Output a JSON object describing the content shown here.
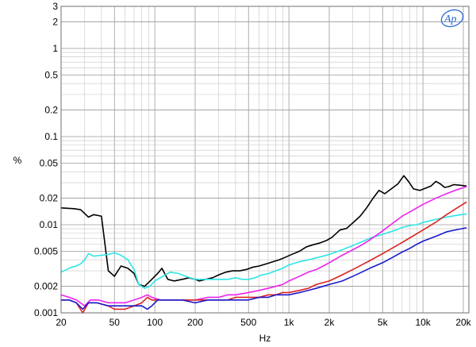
{
  "chart_data": {
    "type": "line",
    "title": "",
    "xlabel": "Hz",
    "ylabel": "%",
    "x_scale": "log",
    "y_scale": "log",
    "xlim": [
      20,
      22000
    ],
    "ylim": [
      0.001,
      3
    ],
    "grid": true,
    "logo": "Ap",
    "x_ticks": [
      {
        "value": 20,
        "label": "20"
      },
      {
        "value": 50,
        "label": "50"
      },
      {
        "value": 100,
        "label": "100"
      },
      {
        "value": 200,
        "label": "200"
      },
      {
        "value": 500,
        "label": "500"
      },
      {
        "value": 1000,
        "label": "1k"
      },
      {
        "value": 2000,
        "label": "2k"
      },
      {
        "value": 5000,
        "label": "5k"
      },
      {
        "value": 10000,
        "label": "10k"
      },
      {
        "value": 20000,
        "label": "20k"
      }
    ],
    "y_ticks": [
      {
        "value": 3,
        "label": "3"
      },
      {
        "value": 2,
        "label": "2"
      },
      {
        "value": 1,
        "label": "1"
      },
      {
        "value": 0.5,
        "label": "0.5"
      },
      {
        "value": 0.2,
        "label": "0.2"
      },
      {
        "value": 0.1,
        "label": "0.1"
      },
      {
        "value": 0.05,
        "label": "0.05"
      },
      {
        "value": 0.02,
        "label": "0.02"
      },
      {
        "value": 0.01,
        "label": "0.01"
      },
      {
        "value": 0.005,
        "label": "0.005"
      },
      {
        "value": 0.002,
        "label": "0.002"
      },
      {
        "value": 0.001,
        "label": "0.001"
      }
    ],
    "series": [
      {
        "color": "#000000",
        "points": [
          [
            20,
            0.0155
          ],
          [
            25,
            0.0152
          ],
          [
            28,
            0.0148
          ],
          [
            32,
            0.0122
          ],
          [
            35,
            0.013
          ],
          [
            40,
            0.0125
          ],
          [
            45,
            0.003
          ],
          [
            50,
            0.0026
          ],
          [
            56,
            0.0034
          ],
          [
            63,
            0.0032
          ],
          [
            70,
            0.0028
          ],
          [
            76,
            0.0021
          ],
          [
            84,
            0.002
          ],
          [
            95,
            0.0024
          ],
          [
            105,
            0.0028
          ],
          [
            113,
            0.0032
          ],
          [
            125,
            0.0024
          ],
          [
            140,
            0.0023
          ],
          [
            160,
            0.0024
          ],
          [
            180,
            0.0025
          ],
          [
            200,
            0.0024
          ],
          [
            215,
            0.0023
          ],
          [
            240,
            0.0024
          ],
          [
            270,
            0.0025
          ],
          [
            300,
            0.0027
          ],
          [
            340,
            0.0029
          ],
          [
            380,
            0.003
          ],
          [
            430,
            0.003
          ],
          [
            480,
            0.0031
          ],
          [
            540,
            0.0033
          ],
          [
            600,
            0.0034
          ],
          [
            680,
            0.0036
          ],
          [
            760,
            0.0038
          ],
          [
            850,
            0.004
          ],
          [
            950,
            0.0043
          ],
          [
            1050,
            0.0046
          ],
          [
            1200,
            0.005
          ],
          [
            1350,
            0.0056
          ],
          [
            1500,
            0.0059
          ],
          [
            1700,
            0.0062
          ],
          [
            1900,
            0.0066
          ],
          [
            2100,
            0.0072
          ],
          [
            2400,
            0.0087
          ],
          [
            2700,
            0.0091
          ],
          [
            3000,
            0.0105
          ],
          [
            3400,
            0.0125
          ],
          [
            3800,
            0.0155
          ],
          [
            4200,
            0.0195
          ],
          [
            4700,
            0.0245
          ],
          [
            5200,
            0.0225
          ],
          [
            5800,
            0.0255
          ],
          [
            6500,
            0.029
          ],
          [
            7200,
            0.036
          ],
          [
            7800,
            0.031
          ],
          [
            8500,
            0.0255
          ],
          [
            9500,
            0.0245
          ],
          [
            10500,
            0.026
          ],
          [
            11500,
            0.0275
          ],
          [
            12500,
            0.031
          ],
          [
            13500,
            0.029
          ],
          [
            14500,
            0.0265
          ],
          [
            15500,
            0.027
          ],
          [
            17000,
            0.0285
          ],
          [
            19000,
            0.028
          ],
          [
            21000,
            0.0275
          ]
        ]
      },
      {
        "color": "#2ee6e6",
        "points": [
          [
            20,
            0.0029
          ],
          [
            22,
            0.0031
          ],
          [
            24,
            0.0033
          ],
          [
            26,
            0.0034
          ],
          [
            28,
            0.0036
          ],
          [
            30,
            0.004
          ],
          [
            32,
            0.0047
          ],
          [
            35,
            0.0044
          ],
          [
            40,
            0.0045
          ],
          [
            45,
            0.0046
          ],
          [
            50,
            0.0048
          ],
          [
            56,
            0.0045
          ],
          [
            63,
            0.004
          ],
          [
            70,
            0.0031
          ],
          [
            76,
            0.0021
          ],
          [
            84,
            0.0019
          ],
          [
            92,
            0.002
          ],
          [
            100,
            0.0023
          ],
          [
            115,
            0.0026
          ],
          [
            130,
            0.0029
          ],
          [
            150,
            0.0028
          ],
          [
            170,
            0.0026
          ],
          [
            200,
            0.0024
          ],
          [
            250,
            0.0024
          ],
          [
            300,
            0.0024
          ],
          [
            350,
            0.0024
          ],
          [
            400,
            0.0025
          ],
          [
            450,
            0.0024
          ],
          [
            500,
            0.0024
          ],
          [
            560,
            0.0025
          ],
          [
            630,
            0.0027
          ],
          [
            710,
            0.0028
          ],
          [
            800,
            0.003
          ],
          [
            900,
            0.0032
          ],
          [
            1000,
            0.0035
          ],
          [
            1200,
            0.0038
          ],
          [
            1400,
            0.004
          ],
          [
            1600,
            0.0042
          ],
          [
            1800,
            0.0044
          ],
          [
            2000,
            0.0046
          ],
          [
            2500,
            0.0052
          ],
          [
            3000,
            0.0058
          ],
          [
            3500,
            0.0064
          ],
          [
            4000,
            0.007
          ],
          [
            5000,
            0.0078
          ],
          [
            6000,
            0.0085
          ],
          [
            7000,
            0.0093
          ],
          [
            8000,
            0.0098
          ],
          [
            9000,
            0.01
          ],
          [
            10000,
            0.0106
          ],
          [
            12500,
            0.0115
          ],
          [
            15000,
            0.0122
          ],
          [
            18000,
            0.0128
          ],
          [
            21000,
            0.0132
          ]
        ]
      },
      {
        "color": "#ee22ee",
        "points": [
          [
            20,
            0.0016
          ],
          [
            23,
            0.0015
          ],
          [
            26,
            0.0014
          ],
          [
            30,
            0.0012
          ],
          [
            33,
            0.0014
          ],
          [
            38,
            0.0014
          ],
          [
            45,
            0.0013
          ],
          [
            50,
            0.0013
          ],
          [
            60,
            0.0013
          ],
          [
            70,
            0.0014
          ],
          [
            80,
            0.0015
          ],
          [
            88,
            0.0016
          ],
          [
            95,
            0.0015
          ],
          [
            110,
            0.0014
          ],
          [
            130,
            0.0014
          ],
          [
            160,
            0.0014
          ],
          [
            200,
            0.0014
          ],
          [
            250,
            0.0015
          ],
          [
            300,
            0.0015
          ],
          [
            350,
            0.0016
          ],
          [
            400,
            0.0016
          ],
          [
            500,
            0.0017
          ],
          [
            600,
            0.0018
          ],
          [
            700,
            0.0019
          ],
          [
            800,
            0.002
          ],
          [
            900,
            0.0021
          ],
          [
            1000,
            0.0023
          ],
          [
            1200,
            0.0026
          ],
          [
            1400,
            0.0029
          ],
          [
            1600,
            0.0031
          ],
          [
            1800,
            0.0034
          ],
          [
            2000,
            0.0037
          ],
          [
            2500,
            0.0045
          ],
          [
            3000,
            0.0052
          ],
          [
            3500,
            0.0059
          ],
          [
            4000,
            0.0067
          ],
          [
            5000,
            0.0085
          ],
          [
            6000,
            0.0105
          ],
          [
            7000,
            0.0125
          ],
          [
            8000,
            0.014
          ],
          [
            9000,
            0.0155
          ],
          [
            10000,
            0.017
          ],
          [
            12500,
            0.02
          ],
          [
            15000,
            0.0225
          ],
          [
            18000,
            0.025
          ],
          [
            21000,
            0.027
          ]
        ]
      },
      {
        "color": "#dd2222",
        "points": [
          [
            20,
            0.0014
          ],
          [
            23,
            0.0014
          ],
          [
            26,
            0.0013
          ],
          [
            29,
            0.001
          ],
          [
            32,
            0.0013
          ],
          [
            37,
            0.0013
          ],
          [
            45,
            0.0012
          ],
          [
            50,
            0.0011
          ],
          [
            60,
            0.0011
          ],
          [
            70,
            0.0012
          ],
          [
            80,
            0.0013
          ],
          [
            88,
            0.0015
          ],
          [
            95,
            0.0014
          ],
          [
            110,
            0.0014
          ],
          [
            130,
            0.0014
          ],
          [
            160,
            0.0014
          ],
          [
            200,
            0.0014
          ],
          [
            250,
            0.0014
          ],
          [
            300,
            0.0014
          ],
          [
            350,
            0.0014
          ],
          [
            400,
            0.0015
          ],
          [
            500,
            0.0015
          ],
          [
            600,
            0.0015
          ],
          [
            700,
            0.0016
          ],
          [
            800,
            0.0016
          ],
          [
            900,
            0.0017
          ],
          [
            1000,
            0.0017
          ],
          [
            1200,
            0.0018
          ],
          [
            1400,
            0.0019
          ],
          [
            1600,
            0.0021
          ],
          [
            1800,
            0.0022
          ],
          [
            2000,
            0.0023
          ],
          [
            2500,
            0.0027
          ],
          [
            3000,
            0.0031
          ],
          [
            3500,
            0.0035
          ],
          [
            4000,
            0.0039
          ],
          [
            5000,
            0.0047
          ],
          [
            6000,
            0.0055
          ],
          [
            7000,
            0.0063
          ],
          [
            8000,
            0.0071
          ],
          [
            9000,
            0.0079
          ],
          [
            10000,
            0.0087
          ],
          [
            12500,
            0.0107
          ],
          [
            15000,
            0.013
          ],
          [
            18000,
            0.0155
          ],
          [
            21000,
            0.018
          ]
        ]
      },
      {
        "color": "#1a1acc",
        "points": [
          [
            20,
            0.0014
          ],
          [
            23,
            0.0014
          ],
          [
            26,
            0.0013
          ],
          [
            29,
            0.0011
          ],
          [
            32,
            0.0013
          ],
          [
            37,
            0.0013
          ],
          [
            45,
            0.0012
          ],
          [
            50,
            0.0012
          ],
          [
            60,
            0.0012
          ],
          [
            70,
            0.0012
          ],
          [
            80,
            0.0012
          ],
          [
            88,
            0.0011
          ],
          [
            95,
            0.0012
          ],
          [
            105,
            0.0014
          ],
          [
            130,
            0.0014
          ],
          [
            160,
            0.0014
          ],
          [
            200,
            0.0013
          ],
          [
            250,
            0.0014
          ],
          [
            300,
            0.0014
          ],
          [
            350,
            0.0014
          ],
          [
            400,
            0.0014
          ],
          [
            500,
            0.0014
          ],
          [
            600,
            0.0015
          ],
          [
            700,
            0.0015
          ],
          [
            800,
            0.0016
          ],
          [
            900,
            0.0016
          ],
          [
            1000,
            0.0016
          ],
          [
            1200,
            0.0017
          ],
          [
            1400,
            0.0018
          ],
          [
            1600,
            0.0019
          ],
          [
            1800,
            0.002
          ],
          [
            2000,
            0.0021
          ],
          [
            2500,
            0.0023
          ],
          [
            3000,
            0.0026
          ],
          [
            3500,
            0.0029
          ],
          [
            4000,
            0.0032
          ],
          [
            5000,
            0.0037
          ],
          [
            6000,
            0.0043
          ],
          [
            7000,
            0.0049
          ],
          [
            8000,
            0.0054
          ],
          [
            9000,
            0.006
          ],
          [
            10000,
            0.0065
          ],
          [
            12500,
            0.0074
          ],
          [
            15000,
            0.0083
          ],
          [
            18000,
            0.0088
          ],
          [
            21000,
            0.0092
          ]
        ]
      }
    ]
  }
}
